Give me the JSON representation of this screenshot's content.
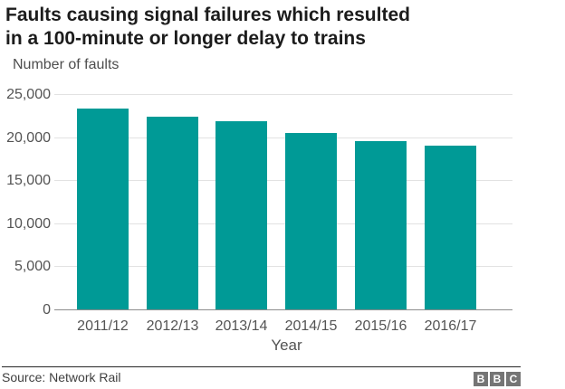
{
  "header": {
    "title_lines": [
      "Faults causing signal failures which resulted",
      "in a 100-minute or longer delay to trains"
    ],
    "subtitle": "Number of faults"
  },
  "chart_data": {
    "type": "bar",
    "title": "Faults causing signal failures which resulted in a 100-minute or longer delay to trains",
    "categories": [
      "2011/12",
      "2012/13",
      "2013/14",
      "2014/15",
      "2015/16",
      "2016/17"
    ],
    "values": [
      23300,
      22400,
      21800,
      20500,
      19550,
      19000
    ],
    "xlabel": "Year",
    "ylabel": "Number of faults",
    "ylim": [
      0,
      25000
    ],
    "ytick_interval": 5000,
    "ytick_labels": [
      "0",
      "5,000",
      "10,000",
      "15,000",
      "20,000",
      "25,000"
    ],
    "grid": true,
    "legend": "none",
    "bar_color": "#009a96"
  },
  "colors": {
    "bar": "#009a96",
    "gridline": "#e2e2e2",
    "axis_line": "#8c8c8c",
    "title_text": "#1c1c1c",
    "axis_text": "#545454",
    "source_text": "#404040",
    "logo_background": "#757575",
    "divider": "#262626"
  },
  "footer": {
    "source": "Source: Network Rail",
    "logo_letters": [
      "B",
      "B",
      "C"
    ]
  }
}
